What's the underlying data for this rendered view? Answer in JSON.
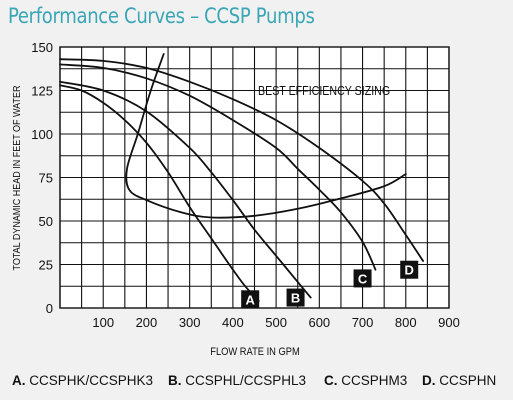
{
  "title": "Performance Curves – CCSP Pumps",
  "legend_items": [
    {
      "key": "A.",
      "text": "CCSPHK/CCSPHK3"
    },
    {
      "key": "B.",
      "text": "CCSPHL/CCSPHL3"
    },
    {
      "key": "C.",
      "text": "CCSPHM3"
    },
    {
      "key": "D.",
      "text": "CCSPHN"
    }
  ],
  "chart_data": {
    "type": "line",
    "xlabel": "FLOW RATE IN GPM",
    "ylabel": "TOTAL DYNAMIC HEAD IN FEET OF WATER",
    "xlim": [
      0,
      900
    ],
    "ylim": [
      0,
      150
    ],
    "x_ticks": [
      "100",
      "200",
      "300",
      "400",
      "500",
      "600",
      "700",
      "800",
      "900"
    ],
    "y_ticks": [
      "0",
      "25",
      "50",
      "75",
      "100",
      "125",
      "150"
    ],
    "grid": true,
    "annotation": "BEST EFFICIENCY SIZING",
    "series": [
      {
        "name": "A",
        "points": [
          [
            0,
            128
          ],
          [
            50,
            125
          ],
          [
            100,
            118
          ],
          [
            150,
            108
          ],
          [
            200,
            95
          ],
          [
            250,
            78
          ],
          [
            300,
            58
          ],
          [
            350,
            40
          ],
          [
            400,
            22
          ],
          [
            430,
            12
          ],
          [
            460,
            4
          ]
        ]
      },
      {
        "name": "B",
        "points": [
          [
            0,
            130
          ],
          [
            100,
            125
          ],
          [
            200,
            113
          ],
          [
            300,
            92
          ],
          [
            350,
            78
          ],
          [
            400,
            62
          ],
          [
            450,
            45
          ],
          [
            500,
            30
          ],
          [
            550,
            15
          ],
          [
            580,
            6
          ]
        ]
      },
      {
        "name": "C",
        "points": [
          [
            0,
            140
          ],
          [
            100,
            138
          ],
          [
            200,
            132
          ],
          [
            300,
            122
          ],
          [
            400,
            108
          ],
          [
            500,
            92
          ],
          [
            550,
            80
          ],
          [
            600,
            68
          ],
          [
            650,
            55
          ],
          [
            700,
            38
          ],
          [
            730,
            22
          ]
        ]
      },
      {
        "name": "D",
        "points": [
          [
            0,
            143
          ],
          [
            100,
            142
          ],
          [
            200,
            138
          ],
          [
            300,
            130
          ],
          [
            400,
            120
          ],
          [
            500,
            108
          ],
          [
            600,
            92
          ],
          [
            700,
            73
          ],
          [
            750,
            60
          ],
          [
            800,
            42
          ],
          [
            840,
            27
          ]
        ]
      },
      {
        "name": "BEST EFFICIENCY SIZING",
        "points": [
          [
            240,
            146
          ],
          [
            210,
            125
          ],
          [
            180,
            100
          ],
          [
            155,
            80
          ],
          [
            160,
            68
          ],
          [
            200,
            62
          ],
          [
            280,
            55
          ],
          [
            350,
            52
          ],
          [
            450,
            53
          ],
          [
            550,
            57
          ],
          [
            650,
            63
          ],
          [
            750,
            70
          ],
          [
            800,
            77
          ]
        ]
      }
    ],
    "curve_labels": [
      {
        "name": "A",
        "x": 440,
        "y": 5
      },
      {
        "name": "B",
        "x": 545,
        "y": 6
      },
      {
        "name": "C",
        "x": 700,
        "y": 17
      },
      {
        "name": "D",
        "x": 808,
        "y": 22
      }
    ]
  }
}
